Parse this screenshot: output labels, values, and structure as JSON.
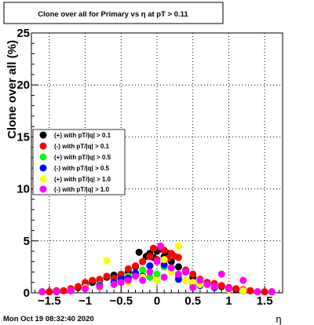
{
  "chart_data": {
    "type": "scatter",
    "title": "Clone  over all for Primary vs   η at pT > 0.11",
    "xlabel": "η",
    "ylabel": "Clone  over all (%)",
    "xlim": [
      -1.75,
      1.75
    ],
    "ylim": [
      0,
      25
    ],
    "x_ticks": [
      -1.5,
      -1,
      -0.5,
      0,
      0.5,
      1,
      1.5
    ],
    "x_tick_labels": [
      "−1.5",
      "−1",
      "−0.5",
      "0",
      "0.5",
      "1",
      "1.5"
    ],
    "y_ticks": [
      0,
      5,
      10,
      15,
      20,
      25
    ],
    "y_tick_labels": [
      "0",
      "5",
      "10",
      "15",
      "20",
      "25"
    ],
    "grid": true,
    "legend_position": "left",
    "series": [
      {
        "name": "(+) with pT/|q| > 0.1",
        "color": "#000000",
        "x": [
          -1.6,
          -1.5,
          -1.4,
          -1.3,
          -1.2,
          -1.1,
          -1.0,
          -0.9,
          -0.8,
          -0.7,
          -0.6,
          -0.5,
          -0.4,
          -0.3,
          -0.25,
          -0.2,
          -0.15,
          -0.1,
          -0.05,
          0.0,
          0.05,
          0.1,
          0.15,
          0.2,
          0.3,
          0.4,
          0.5,
          0.6,
          0.7,
          0.8,
          0.9,
          1.0,
          1.1,
          1.2,
          1.3,
          1.4,
          1.5,
          1.6
        ],
        "y": [
          0.1,
          0.1,
          0.2,
          0.2,
          0.3,
          0.5,
          0.8,
          1.0,
          1.2,
          1.5,
          1.7,
          1.5,
          2.0,
          2.5,
          3.9,
          3.0,
          3.5,
          3.8,
          3.4,
          4.0,
          4.2,
          3.5,
          3.8,
          3.0,
          2.5,
          2.0,
          1.5,
          1.2,
          1.0,
          0.8,
          0.6,
          0.5,
          0.3,
          0.2,
          0.2,
          0.1,
          0.1,
          0.1
        ]
      },
      {
        "name": "(-) with pT/|q| > 0.1",
        "color": "#ff0000",
        "x": [
          -1.6,
          -1.5,
          -1.4,
          -1.3,
          -1.2,
          -1.1,
          -1.0,
          -0.9,
          -0.8,
          -0.7,
          -0.6,
          -0.5,
          -0.4,
          -0.3,
          -0.2,
          -0.1,
          -0.05,
          0.0,
          0.05,
          0.1,
          0.15,
          0.2,
          0.25,
          0.3,
          0.4,
          0.5,
          0.6,
          0.7,
          0.8,
          0.9,
          1.0,
          1.1,
          1.2,
          1.3,
          1.4,
          1.5,
          1.6
        ],
        "y": [
          0.1,
          0.1,
          0.2,
          0.2,
          0.4,
          0.6,
          1.0,
          1.2,
          1.3,
          1.6,
          1.4,
          1.8,
          2.3,
          2.6,
          3.0,
          3.5,
          4.3,
          3.2,
          4.4,
          4.1,
          3.3,
          3.8,
          3.5,
          3.4,
          2.2,
          1.8,
          1.3,
          1.0,
          0.9,
          0.7,
          0.5,
          0.4,
          0.3,
          0.2,
          0.1,
          0.1,
          0.1
        ]
      },
      {
        "name": "(+) with pT/|q| > 0.5",
        "color": "#00ff00",
        "x": [
          -1.6,
          -1.4,
          -1.2,
          -1.0,
          -0.8,
          -0.6,
          -0.5,
          -0.4,
          -0.3,
          -0.2,
          -0.1,
          0.0,
          0.1,
          0.2,
          0.3,
          0.4,
          0.5,
          0.6,
          0.8,
          1.0,
          1.2,
          1.4,
          1.6
        ],
        "y": [
          0.1,
          0.1,
          0.2,
          0.5,
          0.8,
          1.0,
          1.2,
          1.6,
          1.8,
          2.2,
          1.5,
          1.8,
          2.5,
          2.0,
          1.6,
          1.2,
          1.0,
          0.8,
          0.6,
          0.4,
          0.2,
          0.1,
          0.1
        ]
      },
      {
        "name": "(-) with pT/|q| > 0.5",
        "color": "#0000ff",
        "x": [
          -1.6,
          -1.4,
          -1.2,
          -1.0,
          -0.8,
          -0.6,
          -0.5,
          -0.4,
          -0.3,
          -0.2,
          -0.1,
          0.0,
          0.1,
          0.2,
          0.3,
          0.4,
          0.5,
          0.6,
          0.8,
          1.0,
          1.2,
          1.4,
          1.6
        ],
        "y": [
          0.1,
          0.1,
          0.2,
          0.4,
          0.7,
          1.0,
          1.3,
          1.4,
          1.9,
          1.6,
          2.6,
          1.2,
          2.7,
          2.4,
          1.3,
          1.2,
          0.9,
          0.7,
          0.5,
          0.3,
          0.2,
          0.1,
          0.1
        ]
      },
      {
        "name": "(+) with pT/|q| > 1.0",
        "color": "#ffff00",
        "x": [
          -1.6,
          -1.4,
          -1.2,
          -1.0,
          -0.8,
          -0.7,
          -0.6,
          -0.4,
          -0.2,
          0.0,
          0.1,
          0.2,
          0.3,
          0.4,
          0.5,
          0.6,
          0.8,
          1.0,
          1.2,
          1.4,
          1.6
        ],
        "y": [
          0.1,
          0.1,
          0.2,
          0.5,
          0.5,
          3.1,
          0.8,
          1.0,
          1.5,
          1.2,
          3.2,
          2.0,
          4.5,
          1.2,
          1.0,
          0.8,
          0.6,
          0.3,
          0.2,
          0.1,
          0.1
        ]
      },
      {
        "name": "(-) with pT/|q| > 1.0",
        "color": "#ff00ff",
        "x": [
          -1.6,
          -1.4,
          -1.2,
          -1.0,
          -0.8,
          -0.6,
          -0.5,
          -0.4,
          -0.3,
          -0.2,
          -0.1,
          0.0,
          0.05,
          0.1,
          0.2,
          0.3,
          0.4,
          0.5,
          0.6,
          0.7,
          0.8,
          0.9,
          1.0,
          1.2,
          1.4,
          1.6
        ],
        "y": [
          0.1,
          0.1,
          0.2,
          0.4,
          0.6,
          0.8,
          1.0,
          1.2,
          1.6,
          1.2,
          2.0,
          3.0,
          4.5,
          1.5,
          2.4,
          1.8,
          2.0,
          0.5,
          1.2,
          0.8,
          0.6,
          1.8,
          0.4,
          1.2,
          0.1,
          0.1
        ]
      }
    ]
  },
  "footer": {
    "timestamp": "Mon Oct 19 08:32:40 2020"
  }
}
